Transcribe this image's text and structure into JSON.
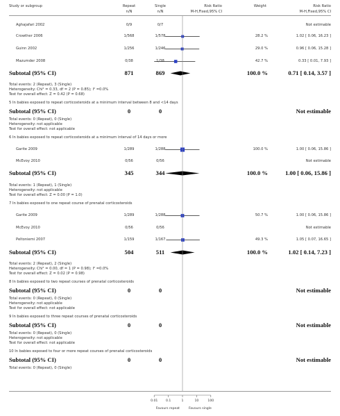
{
  "header": {
    "study": "Study or subgroup",
    "repeat": "Repeat",
    "repeat_sub": "n/N",
    "single": "Single",
    "single_sub": "n/N",
    "rr": "Risk Ratio",
    "rr_sub": "M-H,Fixed,95% CI",
    "weight": "Weight",
    "rr2": "Risk Ratio",
    "rr2_sub": "M-H,Fixed,95% CI"
  },
  "rows": [
    {
      "kind": "study",
      "name": "Aghajafari 2002",
      "repeat": "0/9",
      "single": "0/7",
      "weight": "",
      "ci": "Not estimable"
    },
    {
      "kind": "study",
      "name": "Crowther 2006",
      "repeat": "1/568",
      "single": "1/578",
      "weight": "28.2 %",
      "ci": "1.02 [ 0.06, 16.23 ]",
      "est": 1.02,
      "lo": 0.06,
      "hi": 16.23,
      "w": 28.2
    },
    {
      "kind": "study",
      "name": "Guinn 2002",
      "repeat": "1/256",
      "single": "1/246",
      "weight": "29.0 %",
      "ci": "0.96 [ 0.06, 15.28 ]",
      "est": 0.96,
      "lo": 0.06,
      "hi": 15.28,
      "w": 29.0
    },
    {
      "kind": "study",
      "name": "Mazumder 2008",
      "repeat": "0/38",
      "single": "1/38",
      "weight": "42.7 %",
      "ci": "0.33 [ 0.01, 7.93 ]",
      "est": 0.33,
      "lo": 0.01,
      "hi": 7.93,
      "w": 42.7
    },
    {
      "kind": "subtotal",
      "name": "Subtotal (95% CI)",
      "repeat": "871",
      "single": "869",
      "weight": "100.0 %",
      "ci": "0.71 [ 0.14, 3.57 ]",
      "est": 0.71,
      "lo": 0.14,
      "hi": 3.57
    },
    {
      "kind": "note",
      "text": "Total events: 2 (Repeat), 3 (Single)"
    },
    {
      "kind": "note",
      "text": "Heterogeneity: Chi² = 0.33, df = 2 (P = 0.85); I² =0.0%"
    },
    {
      "kind": "note",
      "text": "Test for overall effect: Z = 0.42 (P = 0.68)"
    },
    {
      "kind": "group",
      "text": "5 In babies exposed to repeat corticosteroids at a minimum interval between 8 and <14 days"
    },
    {
      "kind": "subtotal",
      "name": "Subtotal (95% CI)",
      "repeat": "0",
      "single": "0",
      "weight": "",
      "ci": "Not estimable"
    },
    {
      "kind": "note",
      "text": "Total events: 0 (Repeat), 0 (Single)"
    },
    {
      "kind": "note",
      "text": "Heterogeneity: not applicable"
    },
    {
      "kind": "note",
      "text": "Test for overall effect: not applicable"
    },
    {
      "kind": "group",
      "text": "6 In babies exposed to repeat corticosteroids at a minimum interval of 14 days or more"
    },
    {
      "kind": "study",
      "name": "Garite 2009",
      "repeat": "1/289",
      "single": "1/288",
      "weight": "100.0 %",
      "ci": "1.00 [ 0.06, 15.86 ]",
      "est": 1.0,
      "lo": 0.06,
      "hi": 15.86,
      "w": 100
    },
    {
      "kind": "study",
      "name": "McEvoy 2010",
      "repeat": "0/56",
      "single": "0/56",
      "weight": "",
      "ci": "Not estimable"
    },
    {
      "kind": "subtotal",
      "name": "Subtotal (95% CI)",
      "repeat": "345",
      "single": "344",
      "weight": "100.0 %",
      "ci": "1.00 [ 0.06, 15.86 ]",
      "est": 1.0,
      "lo": 0.06,
      "hi": 15.86
    },
    {
      "kind": "note",
      "text": "Total events: 1 (Repeat), 1 (Single)"
    },
    {
      "kind": "note",
      "text": "Heterogeneity: not applicable"
    },
    {
      "kind": "note",
      "text": "Test for overall effect: Z = 0.00 (P = 1.0)"
    },
    {
      "kind": "group",
      "text": "7 In babies exposed to one repeat course of prenatal corticosteroids"
    },
    {
      "kind": "study",
      "name": "Garite 2009",
      "repeat": "1/289",
      "single": "1/288",
      "weight": "50.7 %",
      "ci": "1.00 [ 0.06, 15.86 ]",
      "est": 1.0,
      "lo": 0.06,
      "hi": 15.86,
      "w": 50.7
    },
    {
      "kind": "study",
      "name": "McEvoy 2010",
      "repeat": "0/56",
      "single": "0/56",
      "weight": "",
      "ci": "Not estimable"
    },
    {
      "kind": "study",
      "name": "Peltoniemi 2007",
      "repeat": "1/159",
      "single": "1/167",
      "weight": "49.3 %",
      "ci": "1.05 [ 0.07, 16.65 ]",
      "est": 1.05,
      "lo": 0.07,
      "hi": 16.65,
      "w": 49.3
    },
    {
      "kind": "subtotal",
      "name": "Subtotal (95% CI)",
      "repeat": "504",
      "single": "511",
      "weight": "100.0 %",
      "ci": "1.02 [ 0.14, 7.23 ]",
      "est": 1.02,
      "lo": 0.14,
      "hi": 7.23
    },
    {
      "kind": "note",
      "text": "Total events: 2 (Repeat), 2 (Single)"
    },
    {
      "kind": "note",
      "text": "Heterogeneity: Chi² = 0.00, df = 1 (P = 0.98); I² =0.0%"
    },
    {
      "kind": "note",
      "text": "Test for overall effect: Z = 0.02 (P = 0.98)"
    },
    {
      "kind": "group",
      "text": "8 In babies exposed to two repeat courses of prenatal corticosteroids"
    },
    {
      "kind": "subtotal",
      "name": "Subtotal (95% CI)",
      "repeat": "0",
      "single": "0",
      "weight": "",
      "ci": "Not estimable"
    },
    {
      "kind": "note",
      "text": "Total events: 0 (Repeat), 0 (Single)"
    },
    {
      "kind": "note",
      "text": "Heterogeneity: not applicable"
    },
    {
      "kind": "note",
      "text": "Test for overall effect: not applicable"
    },
    {
      "kind": "group",
      "text": "9 In babies exposed to three repeat courses of prenatal corticosteroids"
    },
    {
      "kind": "subtotal",
      "name": "Subtotal (95% CI)",
      "repeat": "0",
      "single": "0",
      "weight": "",
      "ci": "Not estimable"
    },
    {
      "kind": "note",
      "text": "Total events: 0 (Repeat), 0 (Single)"
    },
    {
      "kind": "note",
      "text": "Heterogeneity: not applicable"
    },
    {
      "kind": "note",
      "text": "Test for overall effect: not applicable"
    },
    {
      "kind": "group",
      "text": "10 In babies exposed to four or more repeat courses of prenatal corticosteroids"
    },
    {
      "kind": "subtotal",
      "name": "Subtotal (95% CI)",
      "repeat": "0",
      "single": "0",
      "weight": "",
      "ci": "Not estimable"
    },
    {
      "kind": "note",
      "text": "Total events: 0 (Repeat), 0 (Single)"
    }
  ],
  "axis": {
    "ticks": [
      {
        "label": "0.01",
        "value": 0.01
      },
      {
        "label": "0.1",
        "value": 0.1
      },
      {
        "label": "1",
        "value": 1
      },
      {
        "label": "10",
        "value": 10
      },
      {
        "label": "100",
        "value": 100
      }
    ],
    "favours_left": "Favours repeat",
    "favours_right": "Favours single",
    "scale": "log"
  },
  "colors": {
    "marker": "#2a3fc4",
    "diamond": "#000000",
    "line": "#222222"
  }
}
